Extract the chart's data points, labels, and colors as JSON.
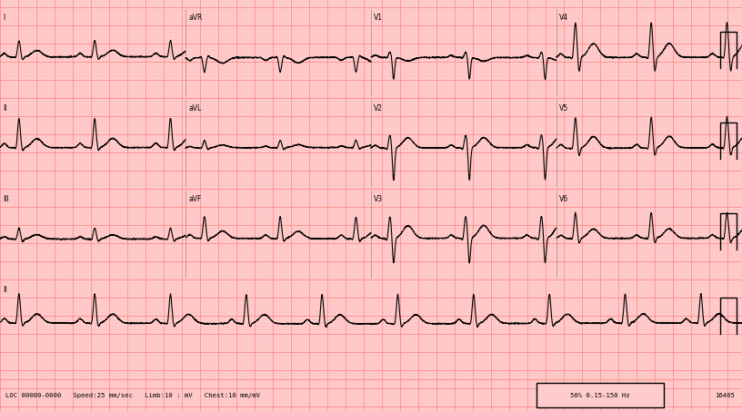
{
  "background_color": "#ffcccc",
  "grid_major_color": "#ff8888",
  "grid_minor_color": "#ffbbbb",
  "ecg_color": "#000000",
  "label_color": "#000000",
  "fig_width": 8.16,
  "fig_height": 4.53,
  "dpi": 100,
  "bottom_text": "LOC 00000-0000   Speed:25 mm/sec   Limb:10 : mV   Chest:10 mm/mV",
  "bottom_right_box": "50% 0.15-150 Hz",
  "bottom_id": "16405",
  "heart_rate": 72,
  "sample_rate": 500
}
